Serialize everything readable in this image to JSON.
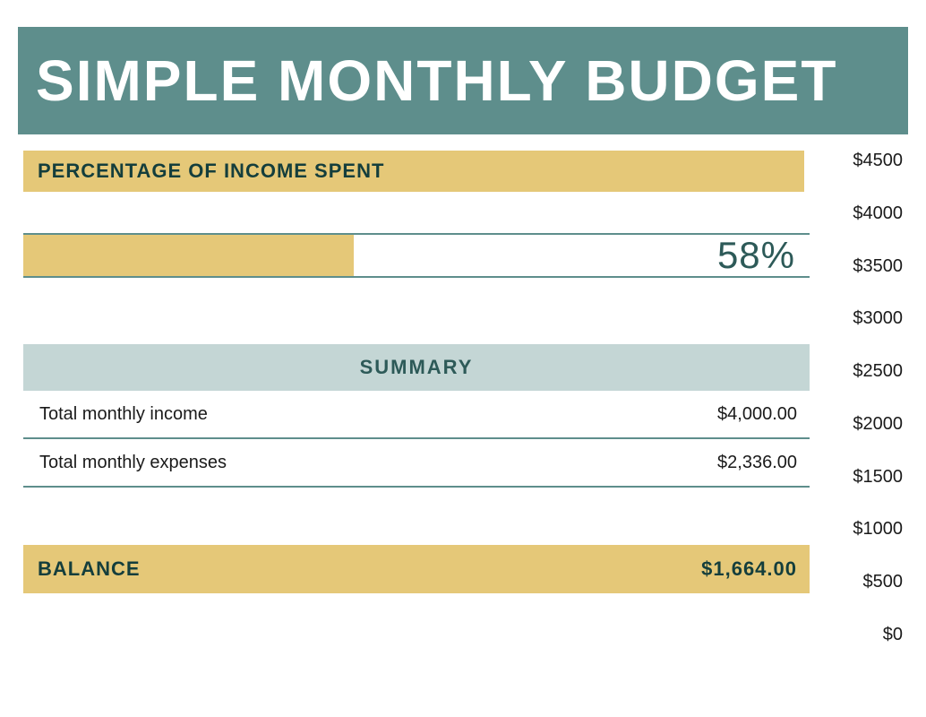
{
  "title": "SIMPLE MONTHLY BUDGET",
  "colors": {
    "title_bg": "#5e8e8c",
    "title_text": "#ffffff",
    "gold": "#e5c878",
    "gold_text": "#143e3c",
    "summary_bg": "#c4d6d5",
    "summary_text": "#2d5a58",
    "body_text": "#1a1a1a",
    "rule": "#5e8e8c",
    "pct_text": "#2d5a58"
  },
  "percentage_section": {
    "header": "PERCENTAGE OF INCOME SPENT",
    "percent_label": "58%",
    "percent_value": 0.42
  },
  "summary": {
    "header": "SUMMARY",
    "rows": [
      {
        "label": "Total monthly income",
        "value": "$4,000.00"
      },
      {
        "label": "Total monthly expenses",
        "value": "$2,336.00"
      }
    ]
  },
  "balance": {
    "label": "BALANCE",
    "value": "$1,664.00"
  },
  "scale": {
    "labels": [
      "$4500",
      "$4000",
      "$3500",
      "$3000",
      "$2500",
      "$2000",
      "$1500",
      "$1000",
      "$500",
      "$0"
    ]
  }
}
